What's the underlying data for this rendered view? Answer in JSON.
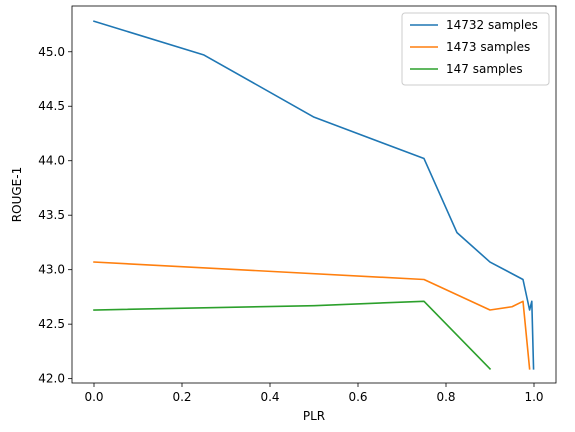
{
  "chart_data": {
    "type": "line",
    "title": "",
    "xlabel": "PLR",
    "ylabel": "ROUGE-1",
    "xlim": [
      -0.05,
      1.05
    ],
    "ylim": [
      41.96,
      45.42
    ],
    "xticks": [
      0.0,
      0.2,
      0.4,
      0.6,
      0.8,
      1.0
    ],
    "xtick_labels": [
      "0.0",
      "0.2",
      "0.4",
      "0.6",
      "0.8",
      "1.0"
    ],
    "yticks": [
      42.0,
      42.5,
      43.0,
      43.5,
      44.0,
      44.5,
      45.0
    ],
    "ytick_labels": [
      "42.0",
      "42.5",
      "43.0",
      "43.5",
      "44.0",
      "44.5",
      "45.0"
    ],
    "grid": false,
    "legend_position": "top-right",
    "series": [
      {
        "name": "14732 samples",
        "color": "#1f77b4",
        "x": [
          0.0,
          0.25,
          0.5,
          0.75,
          0.825,
          0.9,
          0.975,
          0.99,
          0.995,
          0.999
        ],
        "y": [
          45.28,
          44.97,
          44.4,
          44.02,
          43.34,
          43.07,
          42.91,
          42.63,
          42.71,
          42.09
        ]
      },
      {
        "name": "1473 samples",
        "color": "#ff7f0e",
        "x": [
          0.0,
          0.75,
          0.9,
          0.95,
          0.975,
          0.99
        ],
        "y": [
          43.07,
          42.91,
          42.63,
          42.66,
          42.71,
          42.09
        ]
      },
      {
        "name": "147 samples",
        "color": "#2ca02c",
        "x": [
          0.0,
          0.5,
          0.75,
          0.9
        ],
        "y": [
          42.63,
          42.67,
          42.71,
          42.09
        ]
      }
    ]
  }
}
